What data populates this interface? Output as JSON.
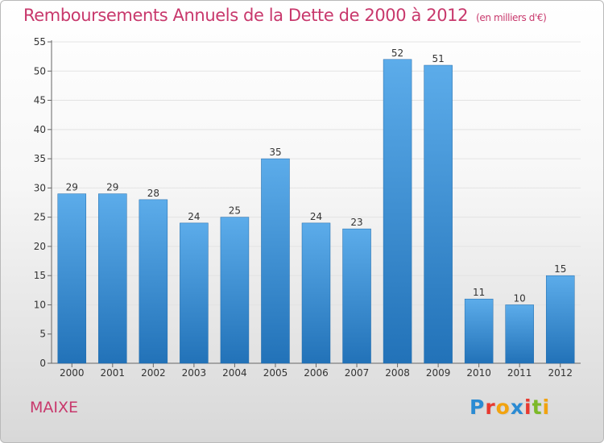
{
  "header": {
    "title": "Remboursements Annuels de la Dette de 2000 à 2012",
    "unit": "(en milliers d'€)"
  },
  "footer": {
    "commune": "MAIXE",
    "logo_parts": [
      {
        "text": "P",
        "color": "#2b8bd3"
      },
      {
        "text": "r",
        "color": "#e8392f"
      },
      {
        "text": "o",
        "color": "#f2a30f"
      },
      {
        "text": "x",
        "color": "#2b8bd3"
      },
      {
        "text": "i",
        "color": "#e8392f"
      },
      {
        "text": "t",
        "color": "#7cb928"
      },
      {
        "text": "i",
        "color": "#f2a30f"
      }
    ]
  },
  "chart_data": {
    "type": "bar",
    "title": "Remboursements Annuels de la Dette de 2000 à 2012",
    "categories": [
      "2000",
      "2001",
      "2002",
      "2003",
      "2004",
      "2005",
      "2006",
      "2007",
      "2008",
      "2009",
      "2010",
      "2011",
      "2012"
    ],
    "values": [
      29,
      29,
      28,
      24,
      25,
      35,
      24,
      23,
      52,
      51,
      11,
      10,
      15
    ],
    "ylim": [
      0,
      55
    ],
    "yticks": [
      0,
      5,
      10,
      15,
      20,
      25,
      30,
      35,
      40,
      45,
      50,
      55
    ],
    "grid": true,
    "bar_color": "#3a8fd6",
    "data_labels": true
  }
}
